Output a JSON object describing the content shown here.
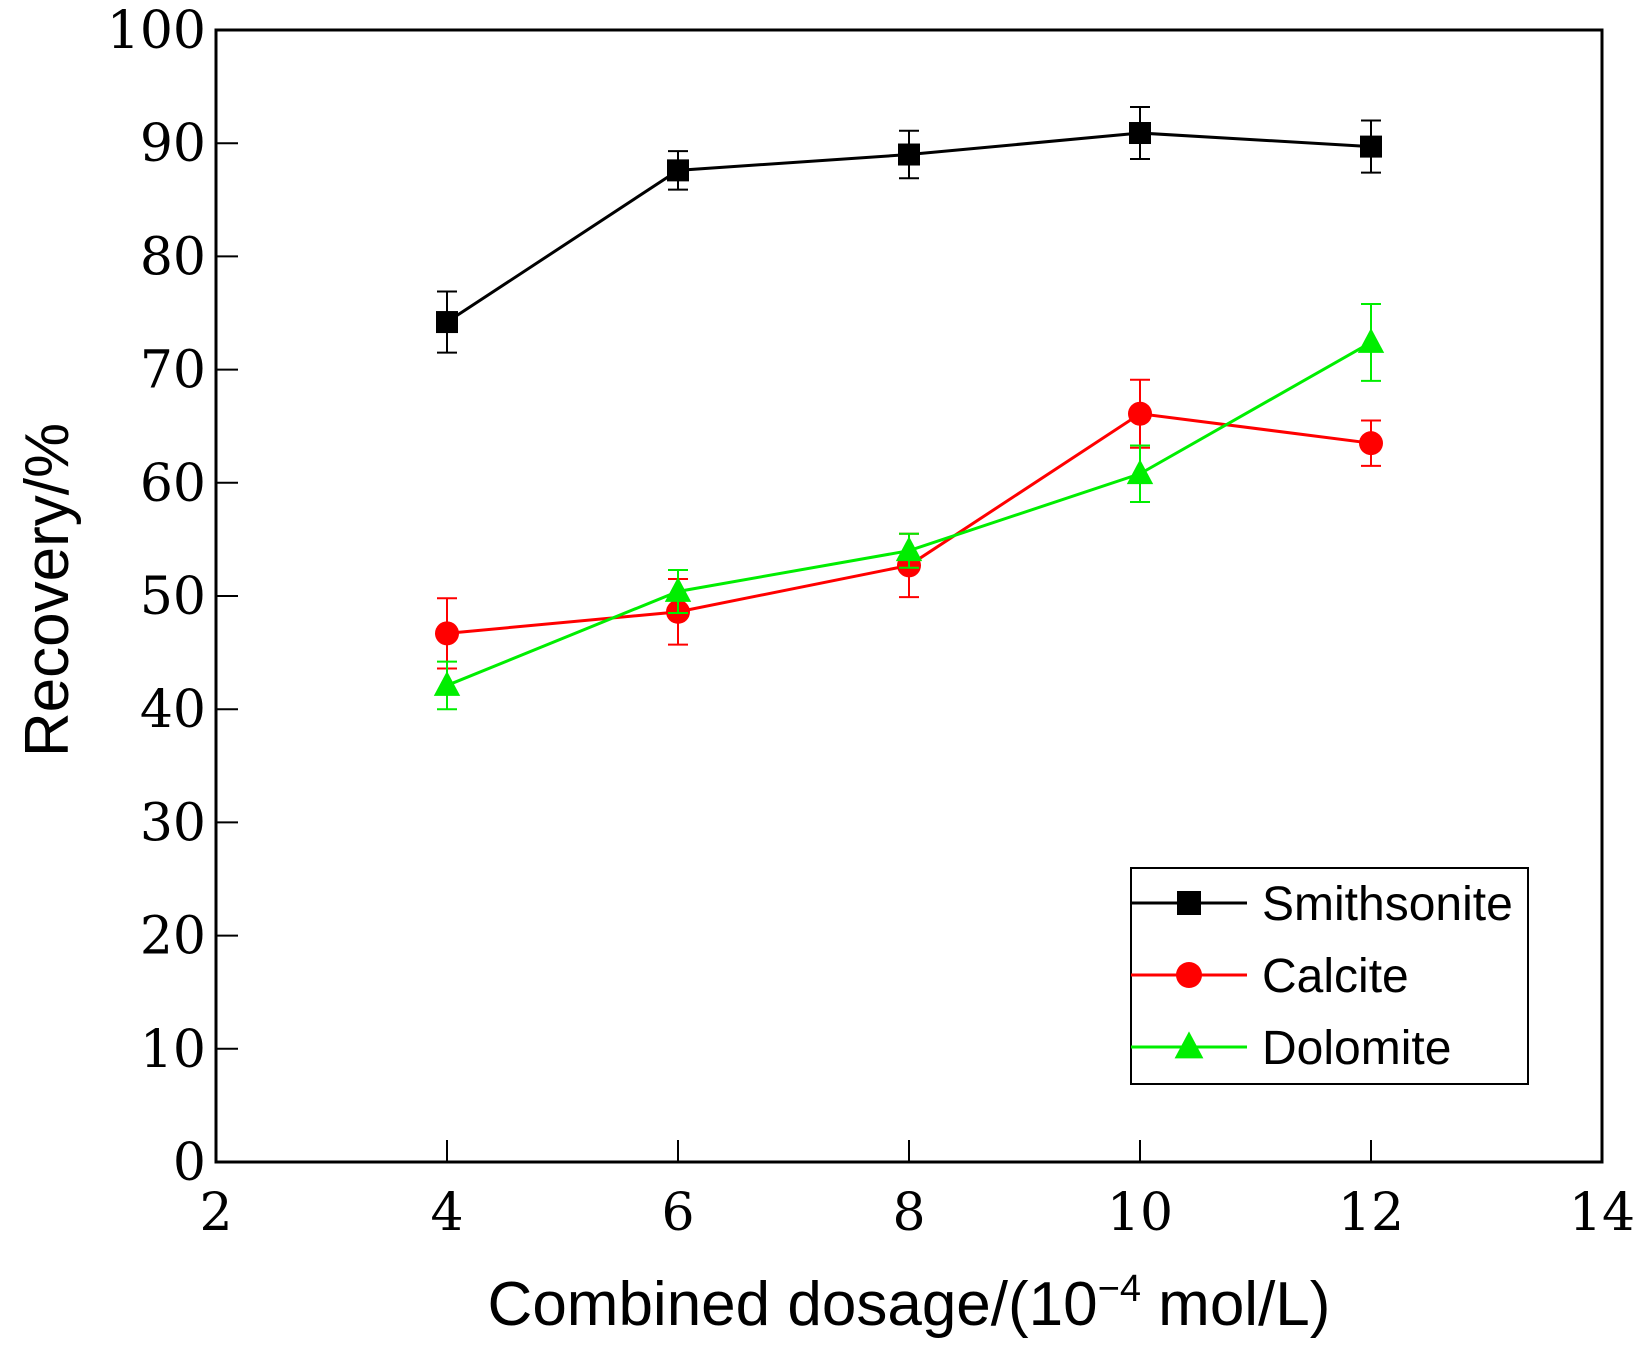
{
  "chart_data": {
    "type": "line",
    "title": "",
    "xlabel": "Combined dosage/(10",
    "xlabel_sup": "−4",
    "xlabel_suffix": " mol/L)",
    "ylabel": "Recovery/%",
    "xlim": [
      2,
      14
    ],
    "ylim": [
      0,
      100
    ],
    "xticks": [
      2,
      4,
      6,
      8,
      10,
      12,
      14
    ],
    "yticks": [
      0,
      10,
      20,
      30,
      40,
      50,
      60,
      70,
      80,
      90,
      100
    ],
    "x": [
      4,
      6,
      8,
      10,
      12
    ],
    "grid": false,
    "legend_position": "bottom-right",
    "series": [
      {
        "name": "Smithsonite",
        "marker": "square",
        "color": "#000000",
        "values": [
          74.2,
          87.6,
          89.0,
          90.9,
          89.7
        ],
        "errors": [
          2.7,
          1.7,
          2.1,
          2.3,
          2.3
        ]
      },
      {
        "name": "Calcite",
        "marker": "circle",
        "color": "#ff0000",
        "values": [
          46.7,
          48.6,
          52.7,
          66.1,
          63.5
        ],
        "errors": [
          3.1,
          2.9,
          2.8,
          3.0,
          2.0
        ]
      },
      {
        "name": "Dolomite",
        "marker": "triangle",
        "color": "#00ee00",
        "values": [
          42.1,
          50.4,
          54.0,
          60.8,
          72.4
        ],
        "errors": [
          2.1,
          1.9,
          1.5,
          2.5,
          3.4
        ]
      }
    ]
  }
}
